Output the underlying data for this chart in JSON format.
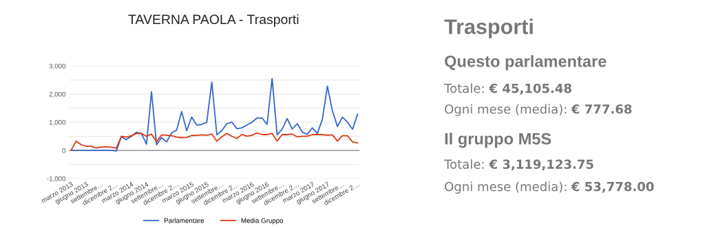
{
  "chart_data": [
    {
      "type": "line",
      "title": "TAVERNA PAOLA - Trasporti",
      "categories": [
        "marzo 2013",
        null,
        null,
        "giugno 2013",
        null,
        null,
        "settembre…",
        null,
        null,
        "dicembre 2…",
        null,
        null,
        "marzo 2014",
        null,
        null,
        "giugno 2014",
        null,
        null,
        "settembre…",
        null,
        null,
        "dicembre 2…",
        null,
        null,
        "marzo 2015",
        null,
        null,
        "giugno 2015",
        null,
        null,
        "settembre…",
        null,
        null,
        "dicembre 2…",
        null,
        null,
        "marzo 2016",
        null,
        null,
        "giugno 2016",
        null,
        null,
        "settembre…",
        null,
        null,
        "dicembre 2…",
        null,
        null,
        "marzo 2017",
        null,
        null,
        "giugno 2017",
        null,
        null,
        "settembre…",
        null,
        null,
        "dicembre 2…"
      ],
      "series": [
        {
          "name": "Parlamentare",
          "color": "#3366cc",
          "values": [
            0,
            0,
            0,
            0,
            0,
            0,
            0,
            0,
            0,
            -20,
            480,
            380,
            500,
            640,
            600,
            220,
            2080,
            200,
            450,
            300,
            620,
            720,
            1380,
            700,
            1180,
            900,
            920,
            1000,
            2430,
            550,
            700,
            950,
            1000,
            770,
            800,
            900,
            1000,
            1150,
            1150,
            920,
            2550,
            550,
            750,
            1130,
            760,
            950,
            650,
            570,
            800,
            600,
            1100,
            2280,
            1400,
            850,
            1180,
            1000,
            750,
            1280
          ]
        },
        {
          "name": "Media Gruppo",
          "color": "#dc3912",
          "values": [
            0,
            330,
            200,
            150,
            150,
            80,
            120,
            130,
            110,
            80,
            500,
            470,
            520,
            600,
            600,
            500,
            580,
            300,
            550,
            540,
            520,
            470,
            450,
            460,
            530,
            530,
            550,
            540,
            580,
            330,
            480,
            600,
            500,
            420,
            570,
            500,
            540,
            620,
            560,
            560,
            600,
            330,
            560,
            560,
            580,
            480,
            500,
            500,
            560,
            560,
            560,
            540,
            550,
            330,
            520,
            520,
            300,
            260
          ]
        }
      ],
      "ylim": [
        -1000,
        3000
      ],
      "yticks": [
        {
          "value": -1000,
          "label": "-1,000"
        },
        {
          "value": -500,
          "label": null
        },
        0,
        {
          "value": 500,
          "label": null
        },
        {
          "value": 1000,
          "label": "1,000"
        },
        {
          "value": 1500,
          "label": null
        },
        {
          "value": 2000,
          "label": "2,000"
        },
        {
          "value": 2500,
          "label": null
        },
        {
          "value": 3000,
          "label": "3,000"
        }
      ],
      "grid": "y",
      "legend": "bottom",
      "marker": "none",
      "line_style": "solid"
    },
    {
      "type": "other",
      "title": "Trasporti",
      "subtitle": "Questo parlamentare",
      "annotations": [
        "Totale: € 45,105.48",
        "Ogni mese (media): € 777.68"
      ]
    },
    {
      "type": "other",
      "title": "Il gruppo M5S",
      "annotations": [
        "Totale: € 3,119,123.75",
        "Ogni mese (media): € 53,778.00"
      ]
    }
  ]
}
